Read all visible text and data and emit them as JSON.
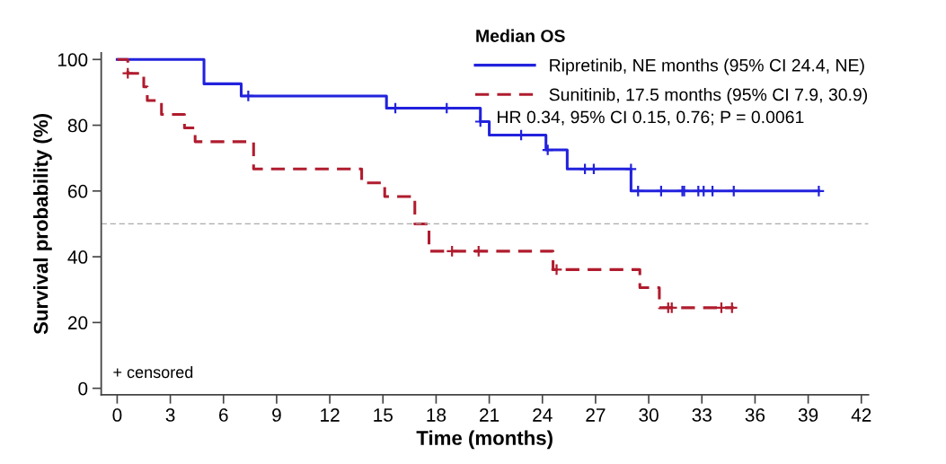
{
  "chart_data": {
    "type": "step",
    "xlabel": "Time (months)",
    "ylabel": "Survival probability (%)",
    "legend_title": "Median OS",
    "xlim": [
      -0.9,
      42.4
    ],
    "xticks": [
      0,
      3,
      6,
      9,
      12,
      15,
      18,
      21,
      24,
      27,
      30,
      33,
      36,
      39,
      42
    ],
    "ylim": [
      -2,
      102
    ],
    "yticks": [
      0,
      20,
      40,
      60,
      80,
      100
    ],
    "grid": false,
    "legend": "top right",
    "series": [
      {
        "name": "Ripretinib, NE months (95% CI 24.4, NE)",
        "color": "#2222dd",
        "line_style": "solid",
        "x": [
          0,
          4.9,
          7.0,
          15.2,
          20.5,
          21.0,
          24.2,
          25.4,
          29.0,
          39.6
        ],
        "values": [
          100,
          92.6,
          88.9,
          85.2,
          81.1,
          77.0,
          72.5,
          66.7,
          60.0,
          60.0
        ]
      },
      {
        "name": "Sunitinib, 17.5 months (95% CI 7.9, 30.9)",
        "color": "#b01c2e",
        "line_style": "dashed",
        "x": [
          0,
          0.6,
          1.5,
          1.7,
          2.5,
          3.8,
          4.4,
          7.7,
          13.8,
          15.1,
          16.8,
          17.6,
          24.6,
          29.5,
          30.6,
          34.8
        ],
        "values": [
          100,
          95.8,
          91.7,
          87.5,
          83.3,
          79.2,
          75.0,
          66.7,
          62.5,
          58.3,
          50.0,
          41.7,
          36.1,
          30.6,
          24.5,
          24.5
        ]
      },
      {
        "type": "scatter",
        "color": "#2222dd",
        "marker": "cross",
        "x": [
          7.4,
          15.7,
          18.6,
          20.5,
          22.8,
          24.3,
          26.4,
          26.9,
          29.0,
          29.4,
          30.7,
          31.9,
          32.0,
          32.8,
          33.1,
          33.6,
          34.8,
          39.6
        ],
        "values": [
          88.9,
          85.2,
          85.2,
          81.1,
          77.0,
          72.5,
          66.7,
          66.7,
          66.7,
          60.0,
          60.0,
          60.0,
          60.0,
          60.0,
          60.0,
          60.0,
          60.0,
          60.0
        ]
      },
      {
        "type": "scatter",
        "color": "#b01c2e",
        "marker": "cross",
        "x": [
          0.6,
          18.9,
          20.4,
          24.8,
          31.1,
          31.3,
          34.1,
          34.7
        ],
        "values": [
          95.8,
          41.7,
          41.7,
          36.1,
          24.5,
          24.5,
          24.5,
          24.5
        ]
      }
    ],
    "ref_lines": [
      {
        "axis": "y",
        "value": 50,
        "color": "#aaaaaa",
        "line_style": "dashed"
      }
    ],
    "annotations": [
      "HR 0.34, 95% CI 0.15, 0.76; P = 0.0061",
      "+ censored"
    ]
  }
}
